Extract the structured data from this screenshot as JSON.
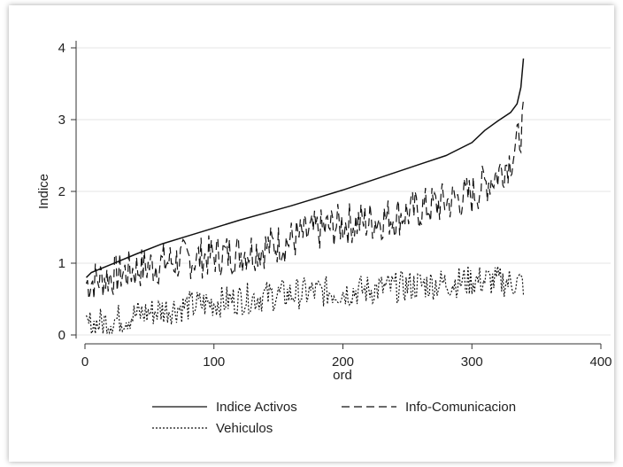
{
  "chart_data": {
    "type": "line",
    "title": "",
    "xlabel": "ord",
    "ylabel": "Indice",
    "xlim": [
      0,
      400
    ],
    "ylim": [
      0,
      4
    ],
    "x_ticks": [
      0,
      100,
      200,
      300,
      400
    ],
    "y_ticks": [
      0,
      1,
      2,
      3,
      4
    ],
    "grid": true,
    "legend_position": "bottom",
    "series": [
      {
        "name": "Indice Activos",
        "style": "solid",
        "color": "#111111",
        "points": [
          [
            1,
            0.8
          ],
          [
            5,
            0.87
          ],
          [
            20,
            0.98
          ],
          [
            40,
            1.13
          ],
          [
            60,
            1.27
          ],
          [
            80,
            1.38
          ],
          [
            100,
            1.49
          ],
          [
            120,
            1.6
          ],
          [
            140,
            1.7
          ],
          [
            160,
            1.8
          ],
          [
            180,
            1.91
          ],
          [
            200,
            2.02
          ],
          [
            220,
            2.14
          ],
          [
            240,
            2.26
          ],
          [
            260,
            2.38
          ],
          [
            280,
            2.5
          ],
          [
            300,
            2.68
          ],
          [
            310,
            2.85
          ],
          [
            320,
            2.98
          ],
          [
            330,
            3.1
          ],
          [
            335,
            3.22
          ],
          [
            338,
            3.45
          ],
          [
            340,
            3.85
          ]
        ]
      },
      {
        "name": "Info-Comunicacion",
        "style": "dashed",
        "color": "#111111",
        "points": [
          [
            1,
            0.72
          ],
          [
            10,
            0.78
          ],
          [
            20,
            0.82
          ],
          [
            40,
            0.92
          ],
          [
            60,
            1.0
          ],
          [
            80,
            1.06
          ],
          [
            100,
            1.1
          ],
          [
            120,
            1.15
          ],
          [
            140,
            1.22
          ],
          [
            160,
            1.32
          ],
          [
            180,
            1.45
          ],
          [
            200,
            1.55
          ],
          [
            220,
            1.58
          ],
          [
            240,
            1.65
          ],
          [
            260,
            1.75
          ],
          [
            280,
            1.85
          ],
          [
            300,
            1.95
          ],
          [
            310,
            2.1
          ],
          [
            320,
            2.25
          ],
          [
            330,
            2.45
          ],
          [
            335,
            2.65
          ],
          [
            340,
            2.98
          ]
        ]
      },
      {
        "name": "Vehiculos",
        "style": "dotted",
        "color": "#111111",
        "points": [
          [
            1,
            0.12
          ],
          [
            20,
            0.2
          ],
          [
            40,
            0.28
          ],
          [
            60,
            0.35
          ],
          [
            80,
            0.4
          ],
          [
            100,
            0.45
          ],
          [
            120,
            0.5
          ],
          [
            140,
            0.54
          ],
          [
            160,
            0.57
          ],
          [
            180,
            0.6
          ],
          [
            200,
            0.6
          ],
          [
            220,
            0.63
          ],
          [
            240,
            0.66
          ],
          [
            260,
            0.7
          ],
          [
            280,
            0.72
          ],
          [
            300,
            0.76
          ],
          [
            320,
            0.75
          ],
          [
            340,
            0.72
          ]
        ]
      }
    ]
  }
}
